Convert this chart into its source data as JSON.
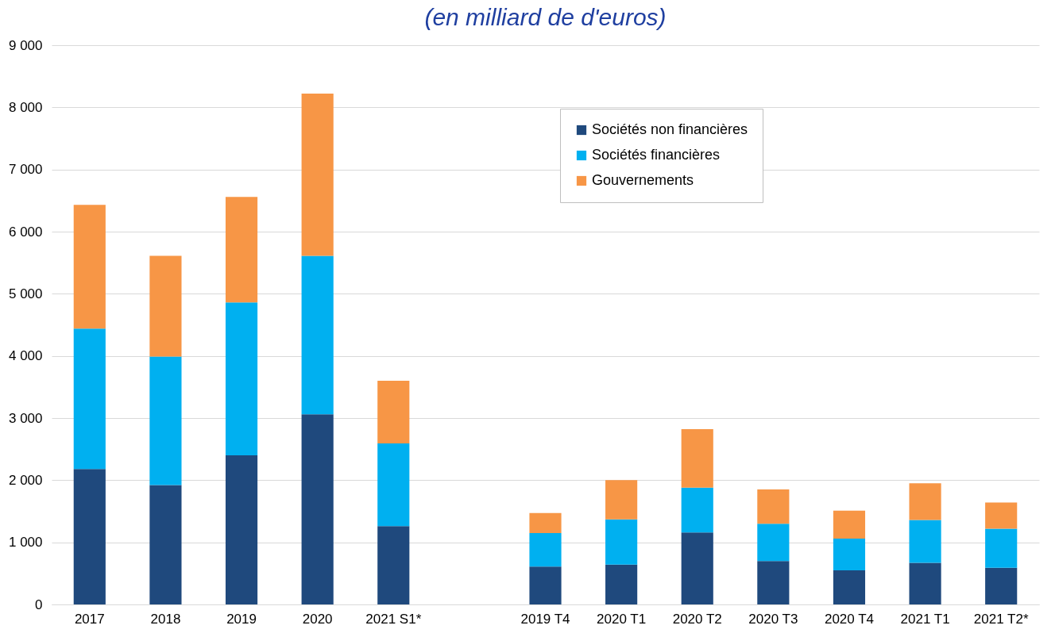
{
  "chart_data": {
    "type": "bar",
    "title": "(en milliard de d'euros)",
    "stacked": true,
    "grid": "y",
    "legend": "top right",
    "categories": [
      "2017",
      "2018",
      "2019",
      "2020",
      "2021 S1*",
      null,
      "2019 T4",
      "2020 T1",
      "2020 T2",
      "2020 T3",
      "2020 T4",
      "2021 T1",
      "2021 T2*"
    ],
    "ylim": [
      0,
      9000
    ],
    "yticks": [
      {
        "value": 0,
        "label": "0"
      },
      {
        "value": 1000,
        "label": "1 000"
      },
      {
        "value": 2000,
        "label": "2 000"
      },
      {
        "value": 3000,
        "label": "3 000"
      },
      {
        "value": 4000,
        "label": "4 000"
      },
      {
        "value": 5000,
        "label": "5 000"
      },
      {
        "value": 6000,
        "label": "6 000"
      },
      {
        "value": 7000,
        "label": "7 000"
      },
      {
        "value": 8000,
        "label": "8 000"
      },
      {
        "value": 9000,
        "label": "9 000"
      }
    ],
    "series": [
      {
        "name": "Sociétés non financières",
        "color": "#1f497d",
        "values": [
          2180,
          1920,
          2400,
          3060,
          1260,
          null,
          610,
          640,
          1160,
          700,
          550,
          670,
          590
        ]
      },
      {
        "name": "Sociétés financières",
        "color": "#00b0f0",
        "values": [
          2260,
          2070,
          2460,
          2550,
          1330,
          null,
          540,
          730,
          720,
          600,
          510,
          690,
          630
        ]
      },
      {
        "name": "Gouvernements",
        "color": "#f79646",
        "values": [
          1990,
          1620,
          1700,
          2610,
          1010,
          null,
          320,
          630,
          940,
          550,
          450,
          590,
          420
        ]
      }
    ]
  }
}
